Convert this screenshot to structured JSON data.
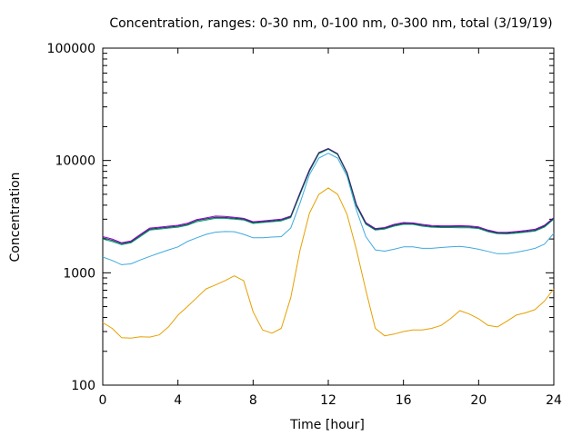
{
  "chart_data": {
    "type": "line",
    "title": "Concentration, ranges: 0-30 nm, 0-100 nm, 0-300 nm, total (3/19/19)",
    "xlabel": "Time [hour]",
    "ylabel": "Concentration",
    "xlim": [
      0,
      24
    ],
    "ylim": [
      100,
      100000
    ],
    "yscale": "log",
    "grid": false,
    "legend": "none",
    "x_ticks": [
      "0",
      "4",
      "8",
      "12",
      "16",
      "20",
      "24"
    ],
    "x_tick_values": [
      0,
      4,
      8,
      12,
      16,
      20,
      24
    ],
    "y_ticks": [
      "100",
      "1000",
      "10000",
      "100000"
    ],
    "y_tick_values": [
      100,
      1000,
      10000,
      100000
    ],
    "x": [
      0,
      0.5,
      1,
      1.5,
      2,
      2.5,
      3,
      3.5,
      4,
      4.5,
      5,
      5.5,
      6,
      6.5,
      7,
      7.5,
      8,
      8.5,
      9,
      9.5,
      10,
      10.5,
      11,
      11.5,
      12,
      12.5,
      13,
      13.5,
      14,
      14.5,
      15,
      15.5,
      16,
      16.5,
      17,
      17.5,
      18,
      18.5,
      19,
      19.5,
      20,
      20.5,
      21,
      21.5,
      22,
      22.5,
      23,
      23.5,
      24
    ],
    "series": [
      {
        "color": "#e5a100",
        "values": [
          360,
          320,
          265,
          262,
          270,
          268,
          280,
          330,
          420,
          500,
          600,
          720,
          780,
          850,
          940,
          850,
          450,
          310,
          290,
          320,
          600,
          1600,
          3400,
          5000,
          5700,
          5000,
          3300,
          1600,
          700,
          320,
          275,
          285,
          300,
          310,
          310,
          320,
          340,
          390,
          460,
          430,
          390,
          340,
          330,
          370,
          420,
          440,
          470,
          560,
          720
        ]
      },
      {
        "color": "#3fa9de",
        "values": [
          1380,
          1290,
          1180,
          1200,
          1300,
          1400,
          1500,
          1600,
          1700,
          1900,
          2050,
          2200,
          2300,
          2330,
          2320,
          2200,
          2050,
          2050,
          2080,
          2100,
          2500,
          4200,
          7500,
          10500,
          11600,
          10500,
          7200,
          3600,
          2100,
          1600,
          1560,
          1620,
          1700,
          1700,
          1650,
          1650,
          1680,
          1700,
          1720,
          1680,
          1620,
          1550,
          1480,
          1480,
          1520,
          1580,
          1650,
          1800,
          2250
        ]
      },
      {
        "color": "#009e73",
        "values": [
          2000,
          1900,
          1780,
          1850,
          2100,
          2400,
          2450,
          2500,
          2550,
          2650,
          2850,
          2950,
          3050,
          3050,
          3000,
          2950,
          2750,
          2800,
          2850,
          2900,
          3100,
          5000,
          8000,
          11500,
          12600,
          11300,
          7600,
          3900,
          2700,
          2400,
          2450,
          2600,
          2700,
          2700,
          2600,
          2550,
          2530,
          2530,
          2520,
          2520,
          2480,
          2320,
          2230,
          2220,
          2250,
          2300,
          2350,
          2550,
          3000
        ]
      },
      {
        "color": "#9400d3",
        "values": [
          2100,
          2000,
          1850,
          1920,
          2200,
          2500,
          2550,
          2600,
          2650,
          2760,
          2980,
          3080,
          3200,
          3180,
          3120,
          3050,
          2850,
          2900,
          2950,
          3000,
          3200,
          5200,
          8300,
          11800,
          12800,
          11500,
          7800,
          4050,
          2800,
          2480,
          2530,
          2700,
          2800,
          2780,
          2700,
          2640,
          2620,
          2620,
          2630,
          2610,
          2560,
          2400,
          2300,
          2290,
          2330,
          2380,
          2440,
          2650,
          3100
        ]
      },
      {
        "color": "#1a3a4a",
        "values": [
          2050,
          1950,
          1820,
          1880,
          2150,
          2450,
          2500,
          2550,
          2600,
          2700,
          2920,
          3020,
          3120,
          3110,
          3060,
          3000,
          2800,
          2850,
          2900,
          2950,
          3150,
          5100,
          8150,
          11700,
          12700,
          11400,
          7700,
          3980,
          2750,
          2440,
          2490,
          2650,
          2750,
          2740,
          2650,
          2590,
          2570,
          2570,
          2570,
          2560,
          2520,
          2360,
          2260,
          2250,
          2290,
          2340,
          2390,
          2600,
          3050
        ]
      }
    ]
  }
}
